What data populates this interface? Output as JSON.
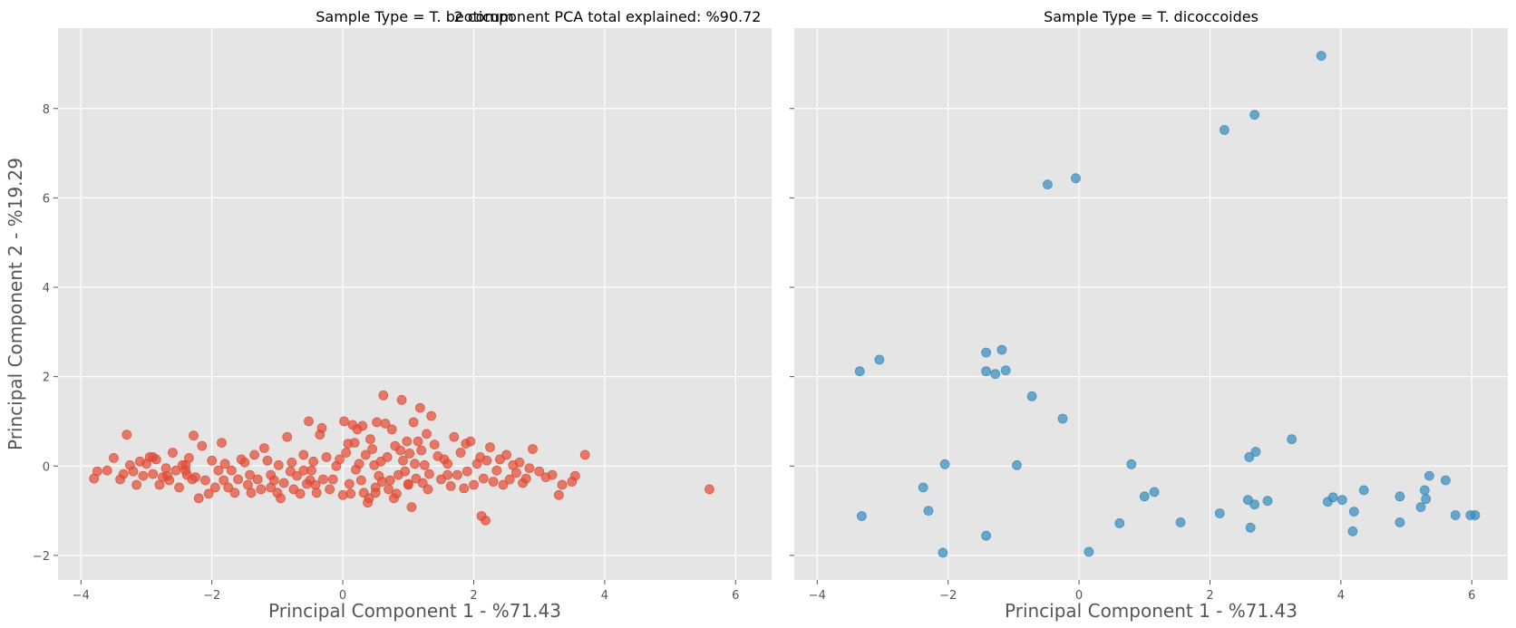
{
  "figure": {
    "suptitle": "2 component PCA total explained: %90.72"
  },
  "chart_data": [
    {
      "type": "scatter",
      "title": "Sample Type = T. beoticum",
      "xlabel": "Principal Component 1 - %71.43",
      "ylabel": "Principal Component 2 - %19.29",
      "xlim": [
        -4.35,
        6.55
      ],
      "ylim": [
        -2.55,
        9.8
      ],
      "xticks": [
        -4,
        -2,
        0,
        2,
        4,
        6
      ],
      "yticks": [
        -2,
        0,
        2,
        4,
        6,
        8
      ],
      "grid": true,
      "color": "#E24A33",
      "points": [
        [
          -3.8,
          -0.28
        ],
        [
          -3.75,
          -0.12
        ],
        [
          -3.6,
          -0.1
        ],
        [
          -3.5,
          0.18
        ],
        [
          -3.4,
          -0.3
        ],
        [
          -3.35,
          -0.18
        ],
        [
          -3.3,
          0.7
        ],
        [
          -3.25,
          0.02
        ],
        [
          -3.2,
          -0.12
        ],
        [
          -3.15,
          -0.42
        ],
        [
          -3.1,
          0.1
        ],
        [
          -3.05,
          -0.22
        ],
        [
          -3.0,
          0.05
        ],
        [
          -2.95,
          0.2
        ],
        [
          -2.9,
          -0.18
        ],
        [
          -2.85,
          0.15
        ],
        [
          -2.8,
          -0.42
        ],
        [
          -2.75,
          -0.25
        ],
        [
          -2.7,
          -0.05
        ],
        [
          -2.68,
          -0.22
        ],
        [
          -2.65,
          -0.32
        ],
        [
          -2.6,
          0.3
        ],
        [
          -2.55,
          -0.1
        ],
        [
          -2.5,
          -0.48
        ],
        [
          -2.45,
          0.02
        ],
        [
          -2.4,
          -0.1
        ],
        [
          -2.38,
          -0.2
        ],
        [
          -2.35,
          0.18
        ],
        [
          -2.3,
          -0.3
        ],
        [
          -2.28,
          0.68
        ],
        [
          -2.25,
          -0.25
        ],
        [
          -2.2,
          -0.72
        ],
        [
          -2.15,
          0.45
        ],
        [
          -2.1,
          -0.32
        ],
        [
          -2.05,
          -0.62
        ],
        [
          -2.0,
          0.12
        ],
        [
          -1.95,
          -0.48
        ],
        [
          -1.9,
          -0.1
        ],
        [
          -1.85,
          0.52
        ],
        [
          -1.82,
          -0.32
        ],
        [
          -1.8,
          0.05
        ],
        [
          -1.75,
          -0.48
        ],
        [
          -1.7,
          -0.1
        ],
        [
          -1.65,
          -0.6
        ],
        [
          -1.6,
          -0.3
        ],
        [
          -1.55,
          0.15
        ],
        [
          -1.5,
          0.08
        ],
        [
          -1.45,
          -0.42
        ],
        [
          -1.42,
          -0.2
        ],
        [
          -1.4,
          -0.6
        ],
        [
          -1.35,
          0.25
        ],
        [
          -1.3,
          -0.3
        ],
        [
          -1.25,
          -0.52
        ],
        [
          -1.2,
          0.4
        ],
        [
          -1.15,
          0.12
        ],
        [
          -1.1,
          -0.48
        ],
        [
          -1.05,
          -0.32
        ],
        [
          -1.0,
          -0.6
        ],
        [
          -0.98,
          0.02
        ],
        [
          -0.95,
          -0.72
        ],
        [
          -0.9,
          -0.38
        ],
        [
          -0.85,
          0.65
        ],
        [
          -0.8,
          -0.12
        ],
        [
          -0.78,
          0.08
        ],
        [
          -0.75,
          -0.52
        ],
        [
          -0.7,
          -0.22
        ],
        [
          -0.65,
          -0.62
        ],
        [
          -0.6,
          0.25
        ],
        [
          -0.55,
          -0.4
        ],
        [
          -0.52,
          1.0
        ],
        [
          -0.5,
          -0.32
        ],
        [
          -0.48,
          -0.1
        ],
        [
          -0.45,
          0.1
        ],
        [
          -0.42,
          -0.42
        ],
        [
          -0.4,
          -0.6
        ],
        [
          -0.35,
          0.7
        ],
        [
          -0.32,
          0.85
        ],
        [
          -0.3,
          -0.3
        ],
        [
          -0.25,
          0.2
        ],
        [
          -0.2,
          -0.52
        ],
        [
          -0.15,
          -0.3
        ],
        [
          -0.1,
          0.0
        ],
        [
          -0.05,
          0.15
        ],
        [
          0.0,
          -0.65
        ],
        [
          0.02,
          1.0
        ],
        [
          0.05,
          0.3
        ],
        [
          0.08,
          0.5
        ],
        [
          0.1,
          -0.4
        ],
        [
          0.12,
          -0.62
        ],
        [
          0.15,
          0.92
        ],
        [
          0.18,
          0.52
        ],
        [
          0.2,
          -0.08
        ],
        [
          0.22,
          0.82
        ],
        [
          0.25,
          0.05
        ],
        [
          0.28,
          -0.32
        ],
        [
          0.3,
          0.9
        ],
        [
          0.32,
          -0.6
        ],
        [
          0.35,
          0.25
        ],
        [
          0.38,
          -0.82
        ],
        [
          0.4,
          -0.72
        ],
        [
          0.42,
          0.6
        ],
        [
          0.45,
          0.38
        ],
        [
          0.48,
          0.02
        ],
        [
          0.5,
          -0.48
        ],
        [
          0.52,
          0.98
        ],
        [
          0.55,
          -0.22
        ],
        [
          0.58,
          0.1
        ],
        [
          0.6,
          -0.35
        ],
        [
          0.62,
          1.58
        ],
        [
          0.65,
          0.95
        ],
        [
          0.68,
          0.2
        ],
        [
          0.7,
          -0.52
        ],
        [
          0.72,
          -0.32
        ],
        [
          0.75,
          0.82
        ],
        [
          0.78,
          -0.72
        ],
        [
          0.8,
          0.45
        ],
        [
          0.82,
          -0.62
        ],
        [
          0.85,
          -0.2
        ],
        [
          0.88,
          0.35
        ],
        [
          0.9,
          1.48
        ],
        [
          0.92,
          0.12
        ],
        [
          0.95,
          -0.12
        ],
        [
          0.98,
          0.55
        ],
        [
          1.0,
          -0.42
        ],
        [
          1.02,
          0.28
        ],
        [
          1.05,
          -0.92
        ],
        [
          1.08,
          0.98
        ],
        [
          1.1,
          0.05
        ],
        [
          1.12,
          -0.28
        ],
        [
          1.15,
          0.55
        ],
        [
          1.18,
          1.3
        ],
        [
          1.2,
          0.35
        ],
        [
          1.22,
          -0.38
        ],
        [
          1.25,
          0.02
        ],
        [
          1.28,
          0.72
        ],
        [
          1.3,
          -0.52
        ],
        [
          1.32,
          -0.18
        ],
        [
          1.35,
          1.12
        ],
        [
          1.4,
          0.48
        ],
        [
          1.45,
          0.22
        ],
        [
          1.5,
          -0.3
        ],
        [
          1.55,
          0.15
        ],
        [
          1.6,
          0.05
        ],
        [
          1.65,
          -0.45
        ],
        [
          1.7,
          0.65
        ],
        [
          1.75,
          -0.2
        ],
        [
          1.8,
          0.3
        ],
        [
          1.85,
          -0.5
        ],
        [
          1.88,
          0.5
        ],
        [
          1.9,
          -0.12
        ],
        [
          1.95,
          0.55
        ],
        [
          2.0,
          -0.42
        ],
        [
          2.05,
          0.05
        ],
        [
          2.1,
          0.2
        ],
        [
          2.12,
          -1.12
        ],
        [
          2.15,
          -0.28
        ],
        [
          2.18,
          -1.22
        ],
        [
          2.2,
          0.12
        ],
        [
          2.25,
          0.42
        ],
        [
          2.3,
          -0.35
        ],
        [
          2.35,
          -0.1
        ],
        [
          2.4,
          0.15
        ],
        [
          2.45,
          -0.42
        ],
        [
          2.5,
          0.25
        ],
        [
          2.55,
          -0.3
        ],
        [
          2.6,
          0.02
        ],
        [
          2.65,
          -0.15
        ],
        [
          2.7,
          0.08
        ],
        [
          2.75,
          -0.38
        ],
        [
          2.8,
          -0.28
        ],
        [
          2.85,
          -0.05
        ],
        [
          2.9,
          0.38
        ],
        [
          3.0,
          -0.12
        ],
        [
          3.1,
          -0.25
        ],
        [
          3.2,
          -0.2
        ],
        [
          3.3,
          -0.65
        ],
        [
          3.35,
          -0.42
        ],
        [
          3.5,
          -0.35
        ],
        [
          3.55,
          -0.22
        ],
        [
          3.7,
          0.25
        ],
        [
          5.6,
          -0.52
        ],
        [
          -2.9,
          0.2
        ],
        [
          -2.4,
          0.02
        ],
        [
          -1.1,
          -0.2
        ],
        [
          -0.6,
          -0.1
        ],
        [
          0.5,
          -0.6
        ],
        [
          1.0,
          -0.4
        ],
        [
          1.6,
          -0.2
        ]
      ]
    },
    {
      "type": "scatter",
      "title": "Sample Type = T. dicoccoides",
      "xlabel": "Principal Component 1 - %71.43",
      "ylabel": "",
      "xlim": [
        -4.35,
        6.55
      ],
      "ylim": [
        -2.55,
        9.8
      ],
      "xticks": [
        -4,
        -2,
        0,
        2,
        4,
        6
      ],
      "yticks": [
        -2,
        0,
        2,
        4,
        6,
        8
      ],
      "grid": true,
      "color": "#348ABD",
      "points": [
        [
          3.7,
          9.18
        ],
        [
          2.22,
          7.52
        ],
        [
          2.68,
          7.86
        ],
        [
          -0.48,
          6.3
        ],
        [
          -0.05,
          6.44
        ],
        [
          -3.35,
          2.12
        ],
        [
          -3.05,
          2.38
        ],
        [
          -1.42,
          2.54
        ],
        [
          -1.18,
          2.6
        ],
        [
          -1.42,
          2.12
        ],
        [
          -1.12,
          2.14
        ],
        [
          -1.28,
          2.06
        ],
        [
          -0.72,
          1.56
        ],
        [
          -0.25,
          1.06
        ],
        [
          3.25,
          0.6
        ],
        [
          2.7,
          0.32
        ],
        [
          2.6,
          0.2
        ],
        [
          -2.05,
          0.04
        ],
        [
          -0.95,
          0.02
        ],
        [
          0.8,
          0.04
        ],
        [
          5.35,
          -0.22
        ],
        [
          5.6,
          -0.32
        ],
        [
          -2.38,
          -0.48
        ],
        [
          4.35,
          -0.54
        ],
        [
          5.28,
          -0.54
        ],
        [
          1.15,
          -0.58
        ],
        [
          1.0,
          -0.68
        ],
        [
          4.9,
          -0.68
        ],
        [
          3.88,
          -0.7
        ],
        [
          4.02,
          -0.76
        ],
        [
          5.3,
          -0.74
        ],
        [
          3.8,
          -0.8
        ],
        [
          2.58,
          -0.76
        ],
        [
          2.88,
          -0.78
        ],
        [
          2.68,
          -0.86
        ],
        [
          5.22,
          -0.92
        ],
        [
          4.2,
          -1.02
        ],
        [
          2.15,
          -1.06
        ],
        [
          5.75,
          -1.1
        ],
        [
          5.98,
          -1.1
        ],
        [
          6.05,
          -1.1
        ],
        [
          -2.3,
          -1.0
        ],
        [
          -3.32,
          -1.12
        ],
        [
          0.62,
          -1.28
        ],
        [
          1.55,
          -1.26
        ],
        [
          4.9,
          -1.26
        ],
        [
          2.62,
          -1.38
        ],
        [
          4.18,
          -1.46
        ],
        [
          -1.42,
          -1.56
        ],
        [
          -2.08,
          -1.94
        ],
        [
          0.15,
          -1.92
        ]
      ]
    }
  ]
}
